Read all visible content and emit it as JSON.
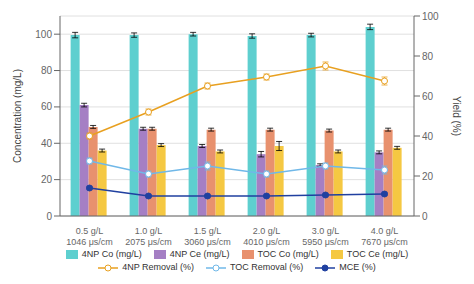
{
  "chart_data": {
    "type": "bar",
    "categories": [
      "0.5 g/L\n1046 μs/cm",
      "1.0 g/L\n2075 μs/cm",
      "1.5 g/L\n3060 μs/cm",
      "2.0 g/L\n4010 μs/cm",
      "3.0 g/L\n5950 μs/cm",
      "4.0 g/L\n7670 μs/cm"
    ],
    "ylabel": "Concentration (mg/L)",
    "y2label": "Yield (%)",
    "ylim": [
      0,
      110
    ],
    "yticks": [
      0,
      20,
      40,
      60,
      80,
      100
    ],
    "y2lim": [
      0,
      100
    ],
    "y2ticks": [
      0,
      20,
      40,
      60,
      80,
      100
    ],
    "grid": true,
    "legend": "bottom",
    "series": [
      {
        "name": "4NP Co (mg/L)",
        "type": "bar",
        "color": "#5ecfcf",
        "values": [
          99.5,
          99.5,
          100.0,
          99.0,
          99.5,
          104.0
        ],
        "errors": [
          1.5,
          1.2,
          1.0,
          1.2,
          1.0,
          1.5
        ]
      },
      {
        "name": "4NP Ce (mg/L)",
        "type": "bar",
        "color": "#a57fc4",
        "values": [
          61.0,
          48.0,
          38.5,
          34.0,
          28.0,
          35.0
        ],
        "errors": [
          1.0,
          0.8,
          0.8,
          1.5,
          0.7,
          0.8
        ]
      },
      {
        "name": "TOC Co (mg/L)",
        "type": "bar",
        "color": "#e8916e",
        "values": [
          49.0,
          48.0,
          47.5,
          47.5,
          47.0,
          47.5
        ],
        "errors": [
          0.8,
          0.8,
          0.8,
          0.8,
          0.8,
          0.8
        ]
      },
      {
        "name": "TOC Ce (mg/L)",
        "type": "bar",
        "color": "#f5c842",
        "values": [
          36.0,
          39.0,
          35.5,
          38.5,
          35.5,
          37.5
        ],
        "errors": [
          0.8,
          0.8,
          0.8,
          2.5,
          0.8,
          0.8
        ]
      },
      {
        "name": "4NP Removal (%)",
        "type": "line",
        "axis": "y2",
        "marker": "open_circle",
        "color": "#e8a020",
        "values": [
          40.0,
          52.0,
          65.0,
          69.5,
          75.0,
          67.5
        ],
        "errors": [
          1.5,
          1.5,
          1.5,
          1.5,
          2.0,
          2.0
        ]
      },
      {
        "name": "TOC Removal (%)",
        "type": "line",
        "axis": "y2",
        "marker": "open_circle",
        "color": "#70b8e8",
        "values": [
          27.5,
          21.0,
          25.0,
          21.0,
          25.0,
          23.0
        ],
        "errors": [
          1.5,
          1.5,
          2.0,
          1.5,
          1.5,
          2.0
        ]
      },
      {
        "name": "MCE (%)",
        "type": "line",
        "axis": "y2",
        "marker": "circle",
        "color": "#2040a0",
        "values": [
          14.0,
          10.0,
          10.0,
          10.0,
          10.5,
          11.0
        ],
        "errors": [
          0.8,
          0.8,
          0.8,
          0.8,
          0.8,
          0.8
        ]
      }
    ]
  }
}
